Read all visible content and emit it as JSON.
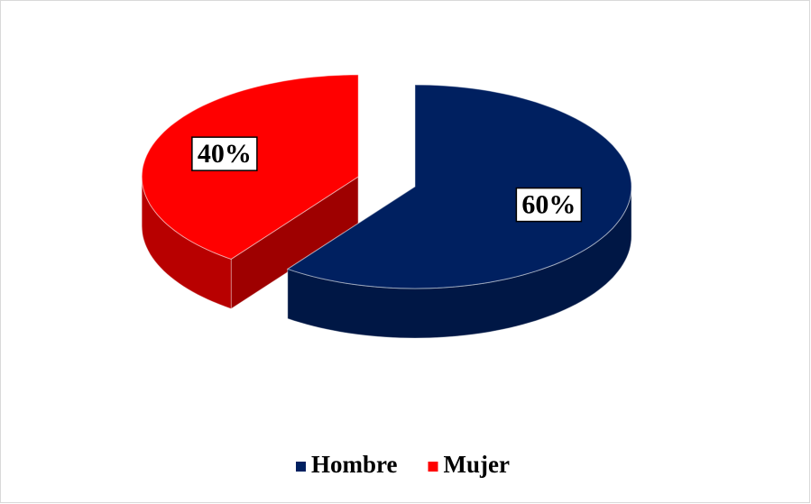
{
  "chart_data": {
    "type": "pie",
    "categories": [
      "Hombre",
      "Mujer"
    ],
    "values": [
      60,
      40
    ],
    "value_labels": [
      "60%",
      "40%"
    ],
    "colors": [
      "#002060",
      "#ff0000"
    ],
    "legend": "bottom"
  }
}
